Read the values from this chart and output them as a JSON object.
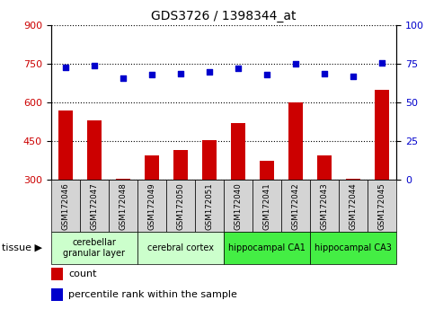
{
  "title": "GDS3726 / 1398344_at",
  "samples": [
    "GSM172046",
    "GSM172047",
    "GSM172048",
    "GSM172049",
    "GSM172050",
    "GSM172051",
    "GSM172040",
    "GSM172041",
    "GSM172042",
    "GSM172043",
    "GSM172044",
    "GSM172045"
  ],
  "counts": [
    570,
    530,
    305,
    395,
    415,
    455,
    520,
    375,
    600,
    395,
    305,
    650
  ],
  "percentiles": [
    73,
    74,
    66,
    68,
    69,
    70,
    72,
    68,
    75,
    69,
    67,
    76
  ],
  "ylim_left": [
    300,
    900
  ],
  "ylim_right": [
    0,
    100
  ],
  "yticks_left": [
    300,
    450,
    600,
    750,
    900
  ],
  "yticks_right": [
    0,
    25,
    50,
    75,
    100
  ],
  "tissue_groups": [
    {
      "label": "cerebellar\ngranular layer",
      "start": 0,
      "end": 3,
      "color": "#ccffcc"
    },
    {
      "label": "cerebral cortex",
      "start": 3,
      "end": 6,
      "color": "#ccffcc"
    },
    {
      "label": "hippocampal CA1",
      "start": 6,
      "end": 9,
      "color": "#44ee44"
    },
    {
      "label": "hippocampal CA3",
      "start": 9,
      "end": 12,
      "color": "#44ee44"
    }
  ],
  "bar_color": "#cc0000",
  "dot_color": "#0000cc",
  "bar_width": 0.5,
  "grid_color": "black",
  "cell_color": "#d4d4d4",
  "xlabel_color": "#cc0000",
  "ylabel_right_color": "#0000cc"
}
